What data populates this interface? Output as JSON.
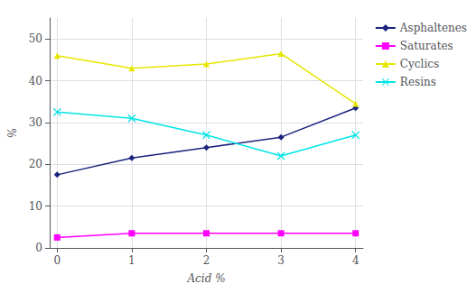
{
  "chart_data": {
    "type": "line",
    "x": [
      0,
      1,
      2,
      3,
      4
    ],
    "series": [
      {
        "name": "Asphaltenes",
        "color": "#1a237e",
        "marker": "diamond",
        "values": [
          17.5,
          21.5,
          24.0,
          26.5,
          33.5
        ]
      },
      {
        "name": "Saturates",
        "color": "#ff00ff",
        "marker": "square",
        "values": [
          2.5,
          3.5,
          3.5,
          3.5,
          3.5
        ]
      },
      {
        "name": "Cyclics",
        "color": "#e6e600",
        "marker": "triangle",
        "values": [
          46.0,
          43.0,
          44.0,
          46.5,
          34.5
        ]
      },
      {
        "name": "Resins",
        "color": "#00e5e5",
        "marker": "x",
        "values": [
          32.5,
          31.0,
          27.0,
          22.0,
          27.0
        ]
      }
    ],
    "xlabel": "Acid %",
    "ylabel": "%",
    "xlim": [
      -0.1,
      4.1
    ],
    "xticks": [
      0,
      1,
      2,
      3,
      4
    ],
    "ylim": [
      0,
      55
    ],
    "yticks": [
      0,
      10,
      20,
      30,
      40,
      50
    ],
    "grid": true,
    "legend": "right"
  }
}
